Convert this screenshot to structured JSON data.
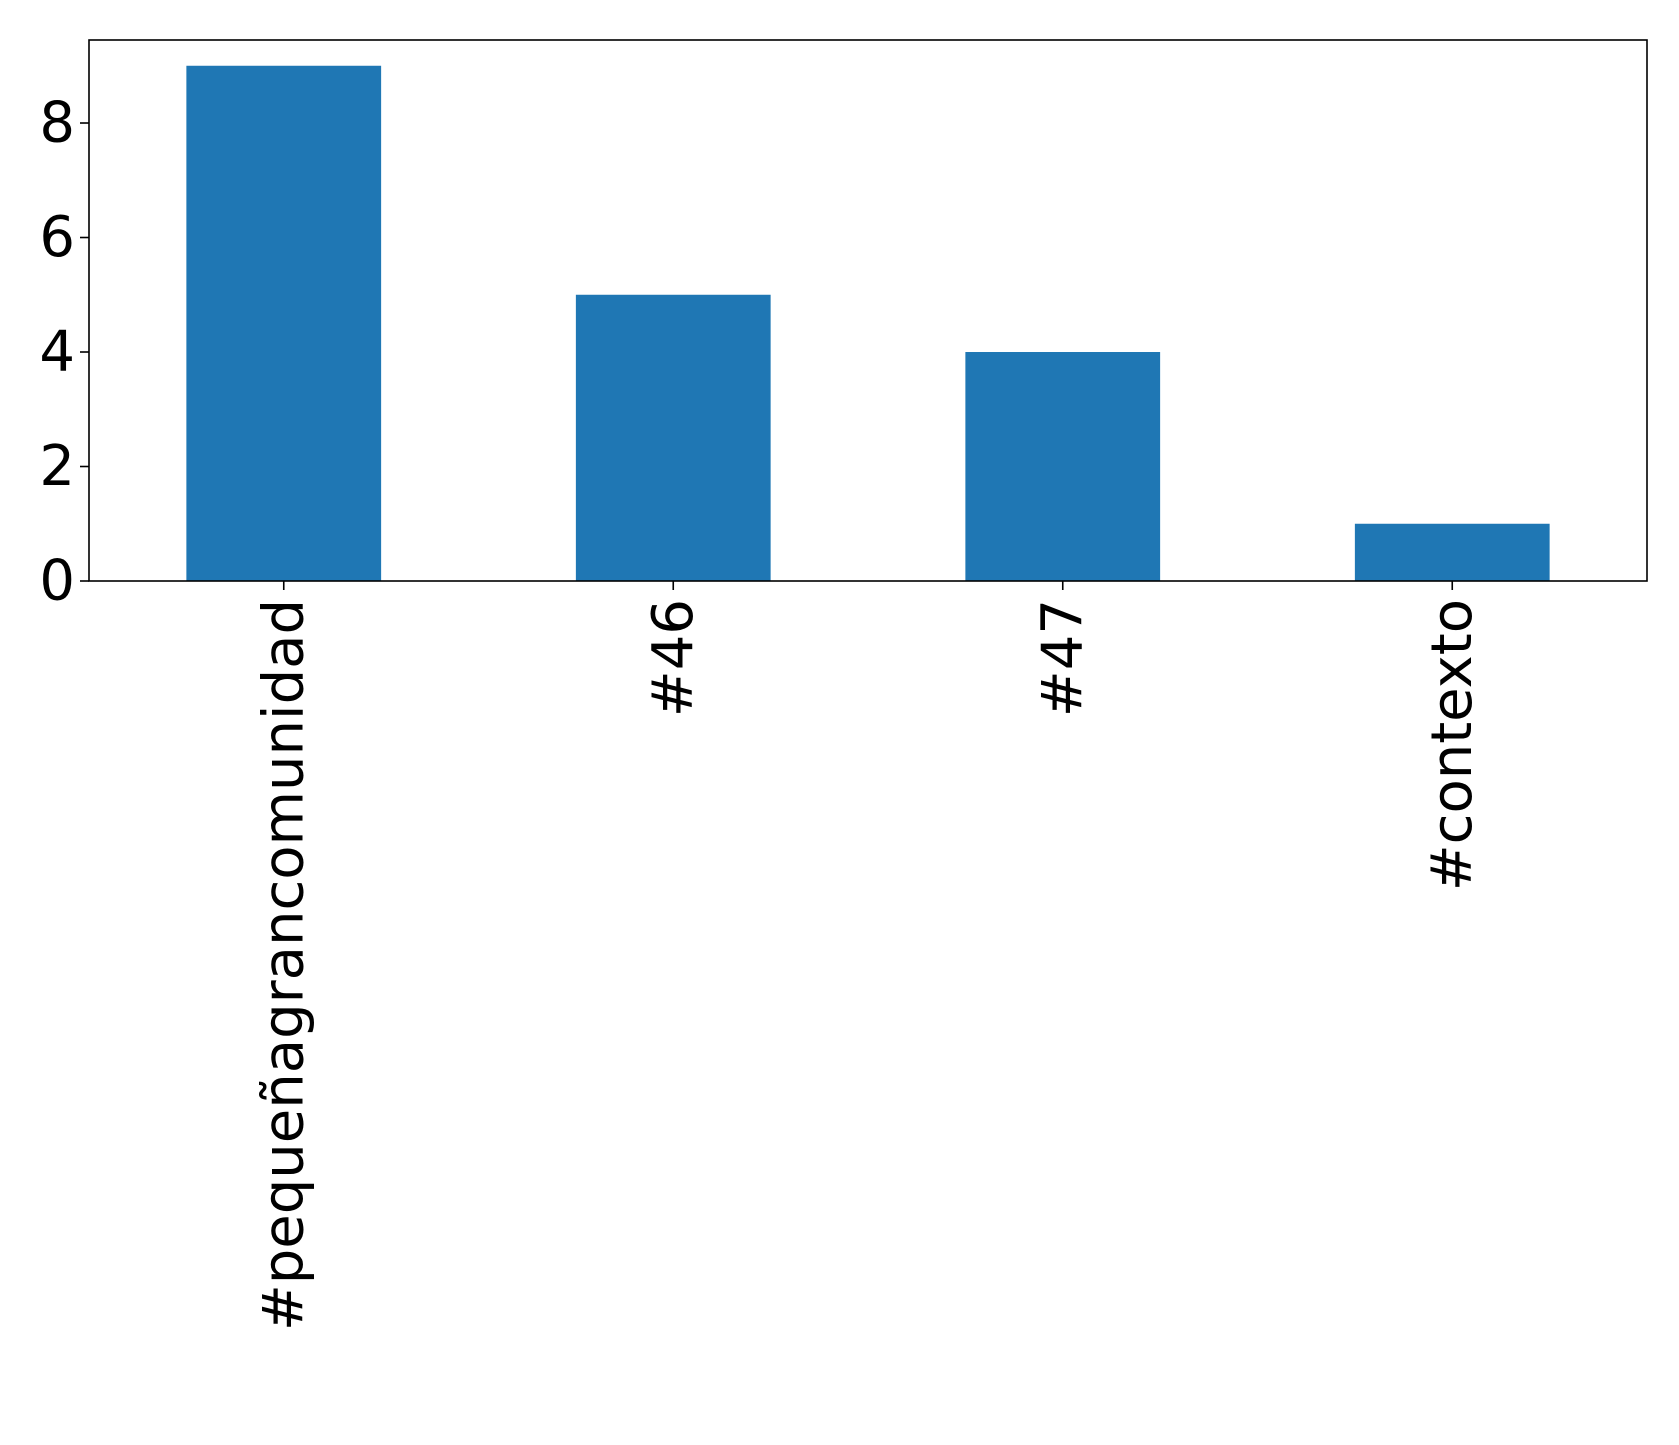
{
  "chart_data": {
    "type": "bar",
    "categories": [
      "#pequeñagrancomunidad",
      "#46",
      "#47",
      "#contexto"
    ],
    "values": [
      9,
      5,
      4,
      1
    ],
    "title": "",
    "xlabel": "",
    "ylabel": "",
    "ylim": [
      0,
      9.45
    ],
    "yticks": [
      0,
      2,
      4,
      6,
      8
    ],
    "grid": false,
    "legend": "none",
    "bar_color": "#1f77b4",
    "x_tick_rotation": "vertical"
  }
}
